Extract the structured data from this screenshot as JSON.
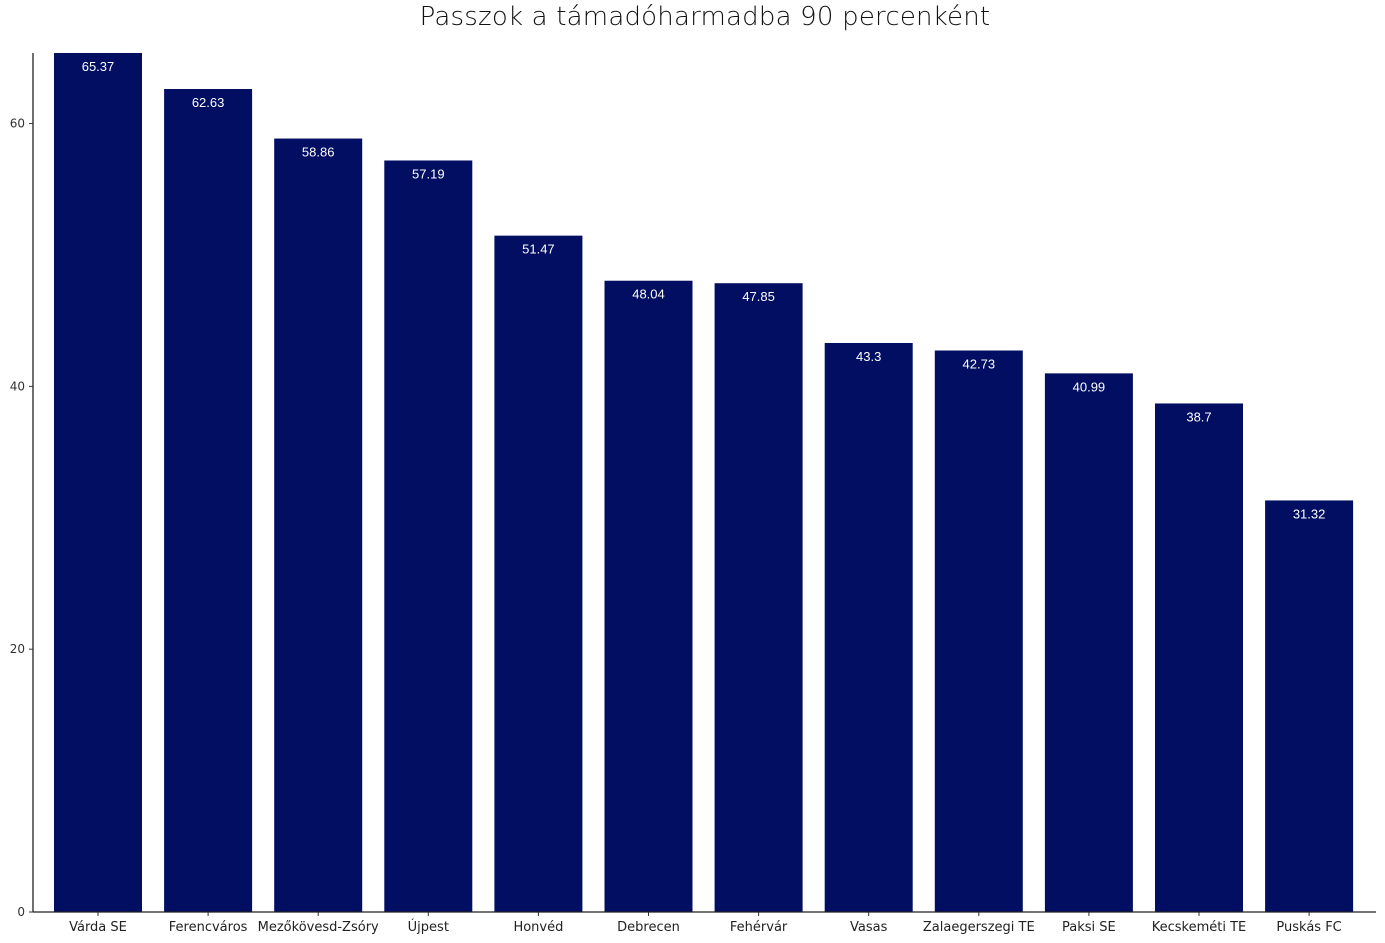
{
  "chart_data": {
    "type": "bar",
    "title": "Passzok a támadóharmadba 90 percenként",
    "xlabel": "",
    "ylabel": "",
    "categories": [
      "Várda SE",
      "Ferencváros",
      "Mezőkövesd-Zsóry",
      "Újpest",
      "Honvéd",
      "Debrecen",
      "Fehérvár",
      "Vasas",
      "Zalaegerszegi TE",
      "Paksi SE",
      "Kecskeméti TE",
      "Puskás FC"
    ],
    "values": [
      65.37,
      62.63,
      58.86,
      57.19,
      51.47,
      48.04,
      47.85,
      43.3,
      42.73,
      40.99,
      38.7,
      31.32
    ],
    "data_labels": [
      "65.37",
      "62.63",
      "58.86",
      "57.19",
      "51.47",
      "48.04",
      "47.85",
      "43.3",
      "42.73",
      "40.99",
      "38.7",
      "31.32"
    ],
    "yticks": [
      0,
      20,
      40,
      60
    ],
    "ylim": [
      0,
      65.37
    ],
    "grid": false,
    "legend": "none",
    "bar_color": "#010e62"
  }
}
